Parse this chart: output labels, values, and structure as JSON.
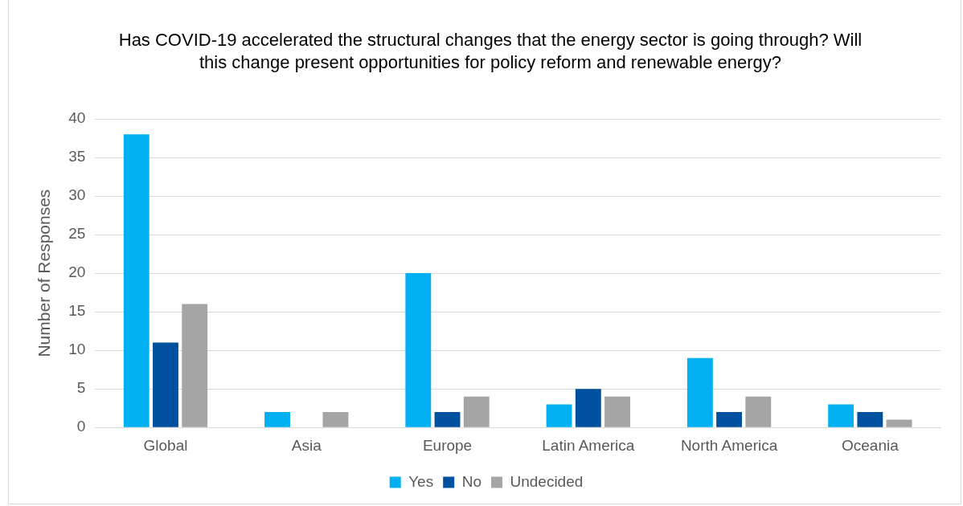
{
  "chart_data": {
    "type": "bar",
    "title": "Has COVID-19 accelerated the structural changes that the energy sector is going through? Will this change present opportunities for policy reform and renewable energy?",
    "ylabel": "Number of Responses",
    "categories": [
      "Global",
      "Asia",
      "Europe",
      "Latin America",
      "North America",
      "Oceania"
    ],
    "series": [
      {
        "name": "Yes",
        "color": "#00b0f0",
        "values": [
          38,
          2,
          20,
          3,
          9,
          3
        ]
      },
      {
        "name": "No",
        "color": "#0050a0",
        "values": [
          11,
          0,
          2,
          5,
          2,
          2
        ]
      },
      {
        "name": "Undecided",
        "color": "#a5a5a5",
        "values": [
          16,
          2,
          4,
          4,
          4,
          1
        ]
      }
    ],
    "ylim": [
      0,
      40
    ],
    "yticks": [
      0,
      5,
      10,
      15,
      20,
      25,
      30,
      35,
      40
    ],
    "grid": "y",
    "legend": "bottom"
  }
}
